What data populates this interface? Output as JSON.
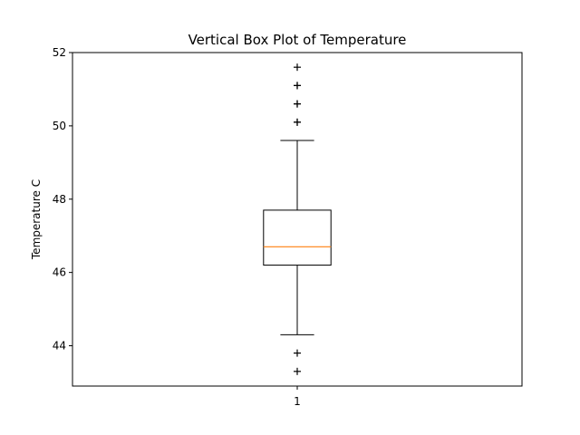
{
  "chart_data": {
    "type": "boxplot",
    "title": "Vertical Box Plot of Temperature",
    "xlabel": "",
    "ylabel": "Temperature C",
    "categories": [
      "1"
    ],
    "ylim": [
      42.9,
      52.0
    ],
    "yticks": [
      44,
      46,
      48,
      50,
      52
    ],
    "grid": false,
    "boxes": [
      {
        "category": "1",
        "whisker_low": 44.3,
        "q1": 46.2,
        "median": 46.7,
        "q3": 47.7,
        "whisker_high": 49.6,
        "fliers": [
          43.3,
          43.8,
          50.1,
          50.1,
          50.6,
          50.6,
          51.1,
          51.1,
          51.6
        ]
      }
    ],
    "colors": {
      "box": "#000000",
      "median": "#ff7f0e",
      "whisker": "#000000",
      "flier": "#000000"
    }
  }
}
